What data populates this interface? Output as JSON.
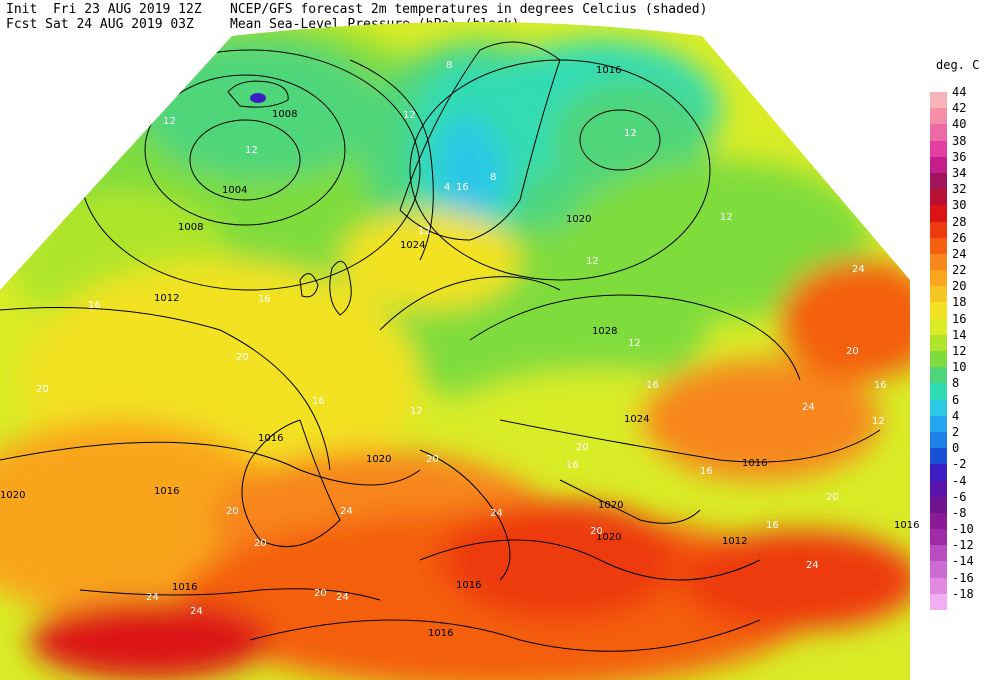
{
  "header": {
    "init_line": "Init  Fri 23 AUG 2019 12Z",
    "fcst_line": "Fcst Sat 24 AUG 2019 03Z",
    "title_line1": "NCEP/GFS forecast 2m temperatures in degrees Celcius (shaded)",
    "title_line2": "Mean Sea-Level Pressure (hPa) (black)."
  },
  "legend": {
    "unit": "deg. C",
    "entries": [
      {
        "label": "44",
        "color": "#f7b3b8"
      },
      {
        "label": "42",
        "color": "#f48fa7"
      },
      {
        "label": "40",
        "color": "#ee6aa4"
      },
      {
        "label": "38",
        "color": "#e23fa0"
      },
      {
        "label": "36",
        "color": "#c41e8c"
      },
      {
        "label": "34",
        "color": "#a0145c"
      },
      {
        "label": "32",
        "color": "#b80f34"
      },
      {
        "label": "30",
        "color": "#dc1414"
      },
      {
        "label": "28",
        "color": "#ee3a10"
      },
      {
        "label": "26",
        "color": "#f45f10"
      },
      {
        "label": "24",
        "color": "#f7861c"
      },
      {
        "label": "22",
        "color": "#f9a51e"
      },
      {
        "label": "20",
        "color": "#f7c622"
      },
      {
        "label": "18",
        "color": "#f2e221"
      },
      {
        "label": "16",
        "color": "#d9ec26"
      },
      {
        "label": "14",
        "color": "#aee52b"
      },
      {
        "label": "12",
        "color": "#7fdc3c"
      },
      {
        "label": "10",
        "color": "#4fd67a"
      },
      {
        "label": "8",
        "color": "#30dcb4"
      },
      {
        "label": "6",
        "color": "#2cc8e6"
      },
      {
        "label": "4",
        "color": "#23a6ef"
      },
      {
        "label": "2",
        "color": "#1d7fe8"
      },
      {
        "label": "0",
        "color": "#1a4fd8"
      },
      {
        "label": "-2",
        "color": "#3c1fc4"
      },
      {
        "label": "-4",
        "color": "#5a14ae"
      },
      {
        "label": "-6",
        "color": "#6e148e"
      },
      {
        "label": "-8",
        "color": "#8a1a96"
      },
      {
        "label": "-10",
        "color": "#a02ba8"
      },
      {
        "label": "-12",
        "color": "#b84cc0"
      },
      {
        "label": "-14",
        "color": "#cc6cd2"
      },
      {
        "label": "-16",
        "color": "#e08ae2"
      },
      {
        "label": "-18",
        "color": "#f2aef2"
      }
    ]
  },
  "isobar_labels": [
    "1008",
    "1004",
    "1008",
    "1012",
    "1016",
    "1016",
    "1020",
    "1020",
    "1016",
    "1016",
    "1016",
    "1024",
    "1020",
    "1028",
    "1024",
    "1016",
    "1020",
    "1012",
    "1016",
    "1016",
    "1020"
  ],
  "temp_labels": [
    "12",
    "12",
    "8",
    "12",
    "12",
    "4",
    "8",
    "16",
    "16",
    "20",
    "20",
    "16",
    "12",
    "12",
    "20",
    "20",
    "24",
    "24",
    "20",
    "24",
    "24",
    "20",
    "24",
    "24",
    "12",
    "16",
    "20",
    "24",
    "16",
    "20",
    "12",
    "16",
    "20",
    "24",
    "16",
    "20",
    "16",
    "12",
    "16",
    "12"
  ]
}
